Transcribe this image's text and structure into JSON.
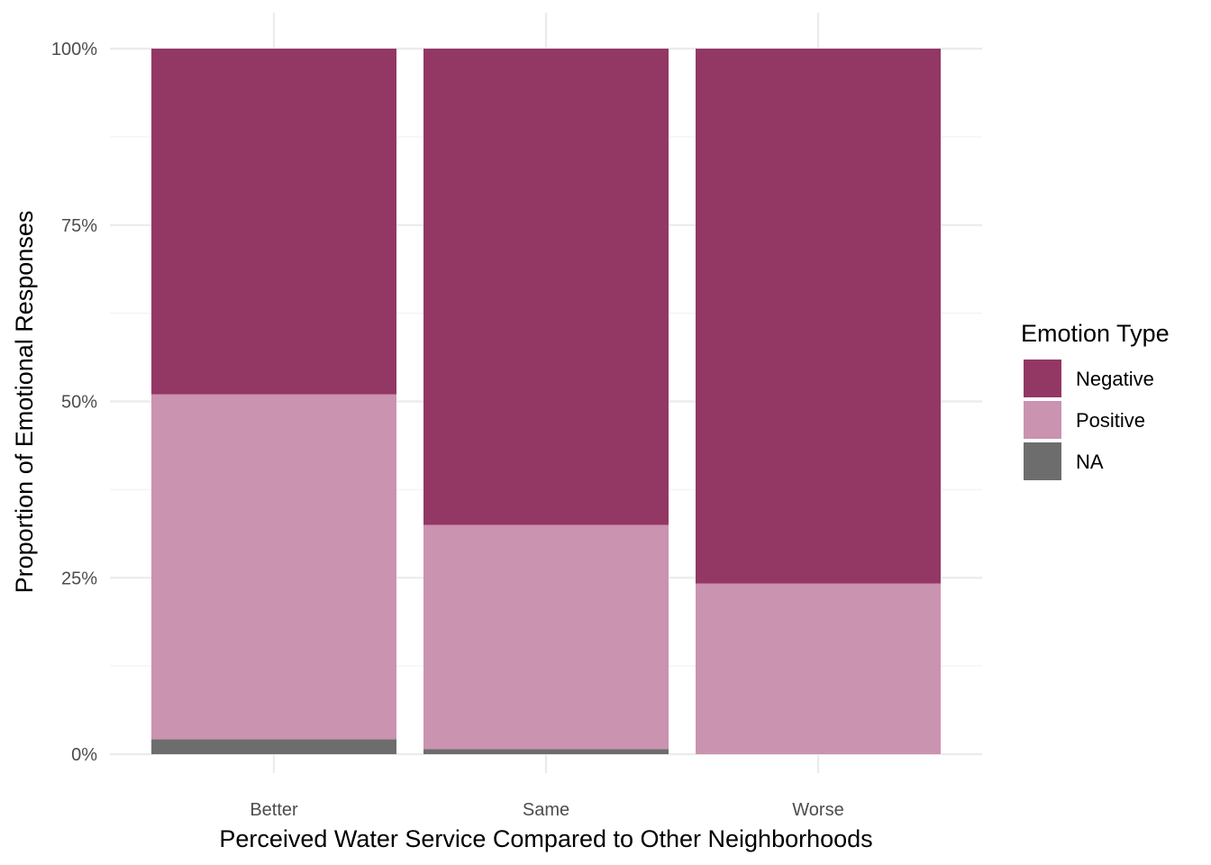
{
  "chart_data": {
    "type": "bar",
    "stacked": true,
    "normalized": true,
    "categories": [
      "Better",
      "Same",
      "Worse"
    ],
    "series": [
      {
        "name": "Negative",
        "color": "#933765",
        "values": [
          49.0,
          67.5,
          75.8
        ]
      },
      {
        "name": "Positive",
        "color": "#ca93af",
        "values": [
          48.9,
          31.8,
          24.2
        ]
      },
      {
        "name": "NA",
        "color": "#6d6d6d",
        "values": [
          2.1,
          0.7,
          0.0
        ]
      }
    ],
    "stack_order_bottom_to_top": [
      "NA",
      "Positive",
      "Negative"
    ],
    "xlabel": "Perceived Water Service Compared to Other Neighborhoods",
    "ylabel": "Proportion of Emotional Responses",
    "ylim": [
      0,
      100
    ],
    "yticks": [
      0,
      25,
      50,
      75,
      100
    ],
    "ytick_labels": [
      "0%",
      "25%",
      "50%",
      "75%",
      "100%"
    ],
    "grid": true,
    "legend": {
      "title": "Emotion Type",
      "placement": "right",
      "entries": [
        "Negative",
        "Positive",
        "NA"
      ]
    }
  }
}
